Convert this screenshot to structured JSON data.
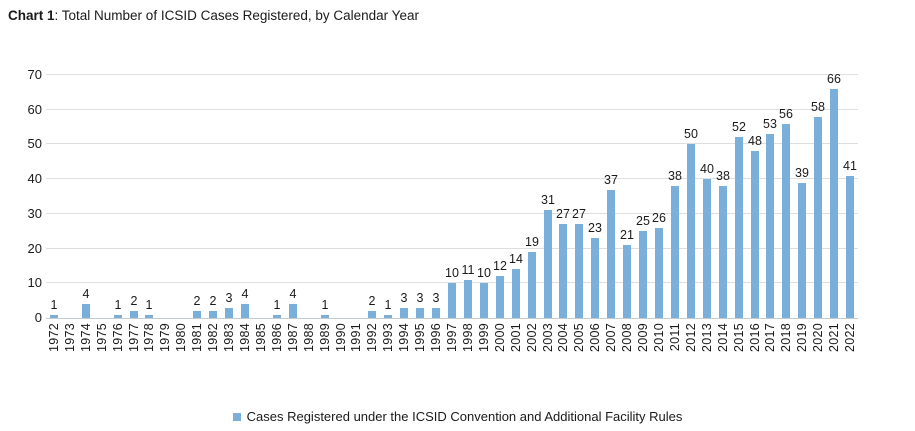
{
  "header": {
    "prefix": "Chart 1",
    "rest": ": Total Number of ICSID Cases Registered, by Calendar Year"
  },
  "colors": {
    "bar": "#7aafd9",
    "gridline": "#dedede",
    "zero_axis": "#c6cbd0",
    "text": "#1a1a1a"
  },
  "chart_data": {
    "type": "bar",
    "title": "Total Number of ICSID Cases Registered, by Calendar Year",
    "legend": "Cases Registered under the ICSID Convention and Additional Facility Rules",
    "legend_position": "bottom",
    "grid": true,
    "data_labels": "shown above each non-zero bar",
    "xlabel": "",
    "ylabel": "",
    "ylim": [
      0,
      70
    ],
    "yticks": [
      0,
      10,
      20,
      30,
      40,
      50,
      60,
      70
    ],
    "categories": [
      "1972",
      "1973",
      "1974",
      "1975",
      "1976",
      "1977",
      "1978",
      "1979",
      "1980",
      "1981",
      "1982",
      "1983",
      "1984",
      "1985",
      "1986",
      "1987",
      "1988",
      "1989",
      "1990",
      "1991",
      "1992",
      "1993",
      "1994",
      "1995",
      "1996",
      "1997",
      "1998",
      "1999",
      "2000",
      "2001",
      "2002",
      "2003",
      "2004",
      "2005",
      "2006",
      "2007",
      "2008",
      "2009",
      "2010",
      "2011",
      "2012",
      "2013",
      "2014",
      "2015",
      "2016",
      "2017",
      "2018",
      "2019",
      "2020",
      "2021",
      "2022"
    ],
    "values": [
      1,
      0,
      4,
      0,
      1,
      2,
      1,
      0,
      0,
      2,
      2,
      3,
      4,
      0,
      1,
      4,
      0,
      1,
      0,
      0,
      2,
      1,
      3,
      3,
      3,
      10,
      11,
      10,
      12,
      14,
      19,
      31,
      27,
      27,
      23,
      37,
      21,
      25,
      26,
      38,
      50,
      40,
      38,
      52,
      48,
      53,
      56,
      39,
      58,
      66,
      41
    ]
  }
}
